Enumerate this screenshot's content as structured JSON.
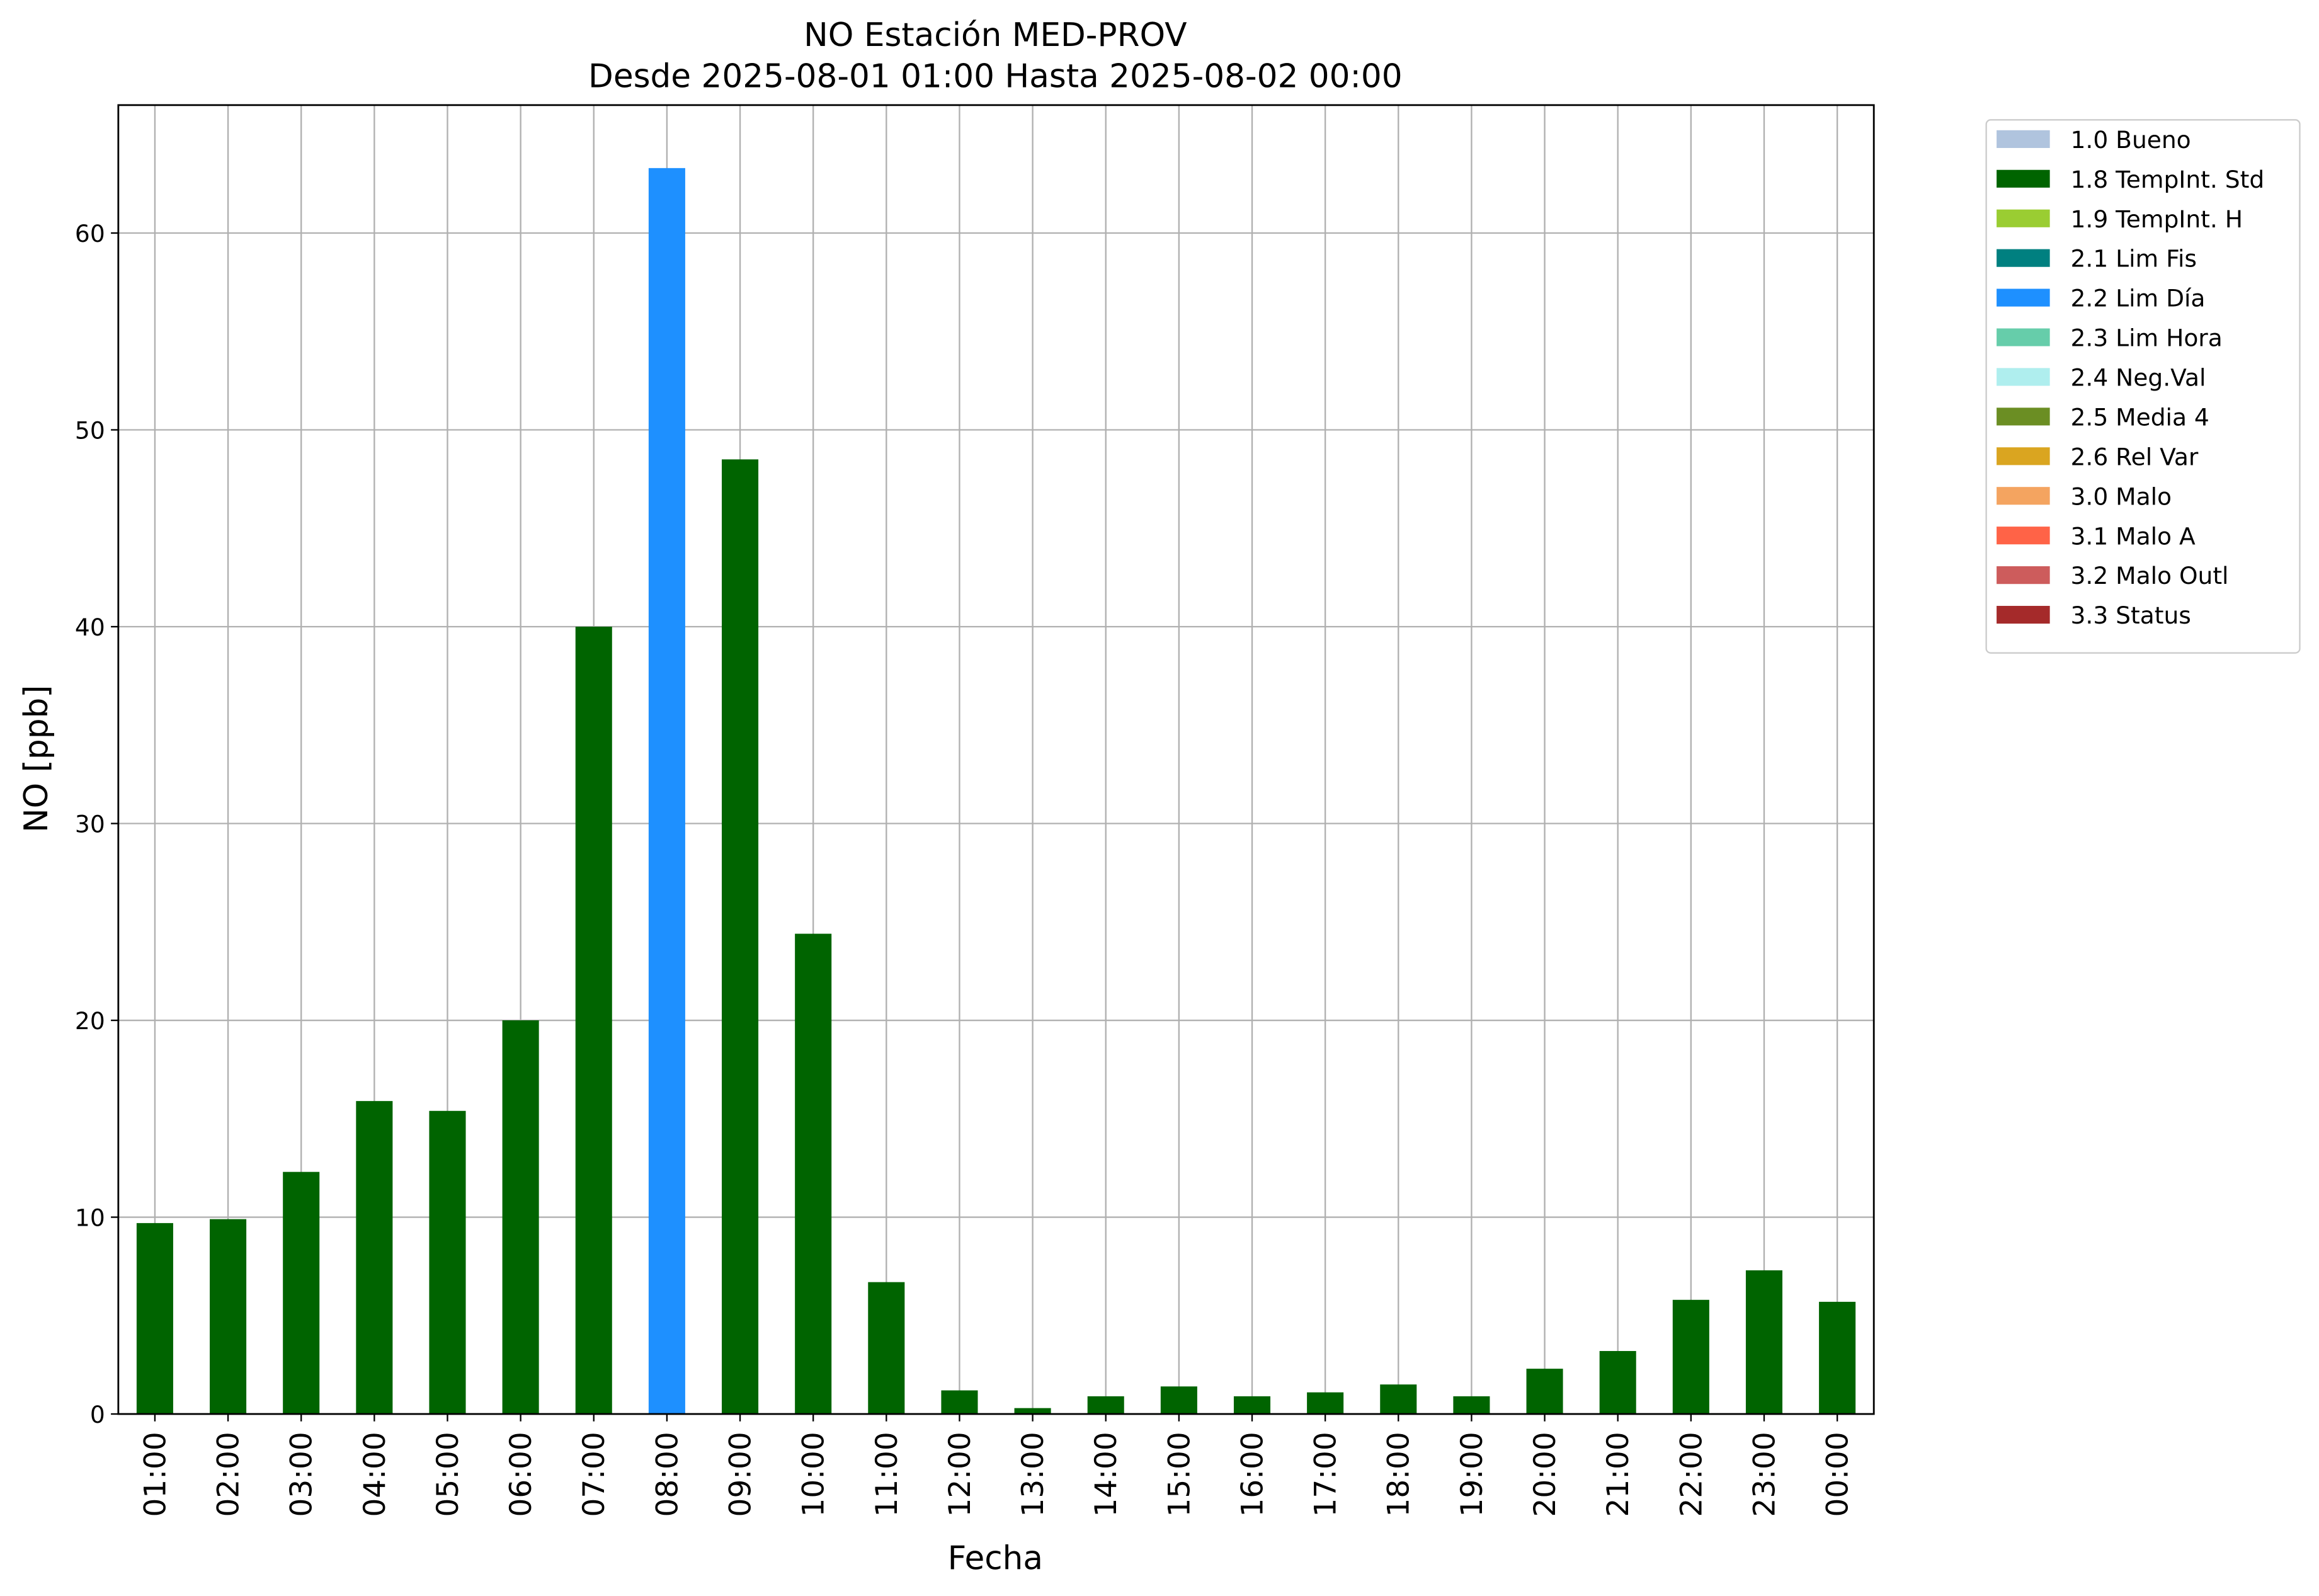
{
  "chart_data": {
    "type": "bar",
    "stacked": true,
    "title": "NO Estación MED-PROV",
    "subtitle": "Desde 2025-08-01 01:00 Hasta 2025-08-02 00:00",
    "x_label": "Fecha",
    "y_label": "NO [ppb]",
    "categories": [
      "01:00",
      "02:00",
      "03:00",
      "04:00",
      "05:00",
      "06:00",
      "07:00",
      "08:00",
      "09:00",
      "10:00",
      "11:00",
      "12:00",
      "13:00",
      "14:00",
      "15:00",
      "16:00",
      "17:00",
      "18:00",
      "19:00",
      "20:00",
      "21:00",
      "22:00",
      "23:00",
      "00:00"
    ],
    "ylim": [
      0,
      66.5
    ],
    "yticks": [
      0,
      10,
      20,
      30,
      40,
      50,
      60
    ],
    "grid": true,
    "legend": "outside right",
    "series": [
      {
        "name": "1.0 Bueno",
        "color": "#b0c4de",
        "values": [
          null,
          null,
          null,
          null,
          null,
          null,
          null,
          null,
          null,
          null,
          null,
          null,
          null,
          null,
          null,
          null,
          null,
          null,
          null,
          null,
          null,
          null,
          null,
          null
        ]
      },
      {
        "name": "1.8 TempInt. Std",
        "color": "#006400",
        "values": [
          9.7,
          9.9,
          12.3,
          15.9,
          15.4,
          20.0,
          40.0,
          null,
          48.5,
          24.4,
          6.7,
          1.2,
          0.3,
          0.9,
          1.4,
          0.9,
          1.1,
          1.5,
          0.9,
          2.3,
          3.2,
          5.8,
          7.3,
          5.7
        ]
      },
      {
        "name": "1.9 TempInt. H",
        "color": "#9acd32",
        "values": [
          null,
          null,
          null,
          null,
          null,
          null,
          null,
          null,
          null,
          null,
          null,
          null,
          null,
          null,
          null,
          null,
          null,
          null,
          null,
          null,
          null,
          null,
          null,
          null
        ]
      },
      {
        "name": "2.1 Lim Fis",
        "color": "#008080",
        "values": [
          null,
          null,
          null,
          null,
          null,
          null,
          null,
          null,
          null,
          null,
          null,
          null,
          null,
          null,
          null,
          null,
          null,
          null,
          null,
          null,
          null,
          null,
          null,
          null
        ]
      },
      {
        "name": "2.2 Lim Día",
        "color": "#1e90ff",
        "values": [
          null,
          null,
          null,
          null,
          null,
          null,
          null,
          63.3,
          null,
          null,
          null,
          null,
          null,
          null,
          null,
          null,
          null,
          null,
          null,
          null,
          null,
          null,
          null,
          null
        ]
      },
      {
        "name": "2.3 Lim Hora",
        "color": "#66cdaa",
        "values": [
          null,
          null,
          null,
          null,
          null,
          null,
          null,
          null,
          null,
          null,
          null,
          null,
          null,
          null,
          null,
          null,
          null,
          null,
          null,
          null,
          null,
          null,
          null,
          null
        ]
      },
      {
        "name": "2.4 Neg.Val",
        "color": "#afeeee",
        "values": [
          null,
          null,
          null,
          null,
          null,
          null,
          null,
          null,
          null,
          null,
          null,
          null,
          null,
          null,
          null,
          null,
          null,
          null,
          null,
          null,
          null,
          null,
          null,
          null
        ]
      },
      {
        "name": "2.5 Media 4",
        "color": "#6b8e23",
        "values": [
          null,
          null,
          null,
          null,
          null,
          null,
          null,
          null,
          null,
          null,
          null,
          null,
          null,
          null,
          null,
          null,
          null,
          null,
          null,
          null,
          null,
          null,
          null,
          null
        ]
      },
      {
        "name": "2.6 Rel Var",
        "color": "#daa520",
        "values": [
          null,
          null,
          null,
          null,
          null,
          null,
          null,
          null,
          null,
          null,
          null,
          null,
          null,
          null,
          null,
          null,
          null,
          null,
          null,
          null,
          null,
          null,
          null,
          null
        ]
      },
      {
        "name": "3.0 Malo",
        "color": "#f4a460",
        "values": [
          null,
          null,
          null,
          null,
          null,
          null,
          null,
          null,
          null,
          null,
          null,
          null,
          null,
          null,
          null,
          null,
          null,
          null,
          null,
          null,
          null,
          null,
          null,
          null
        ]
      },
      {
        "name": "3.1 Malo A",
        "color": "#ff6347",
        "values": [
          null,
          null,
          null,
          null,
          null,
          null,
          null,
          null,
          null,
          null,
          null,
          null,
          null,
          null,
          null,
          null,
          null,
          null,
          null,
          null,
          null,
          null,
          null,
          null
        ]
      },
      {
        "name": "3.2 Malo Outl",
        "color": "#cd5c5c",
        "values": [
          null,
          null,
          null,
          null,
          null,
          null,
          null,
          null,
          null,
          null,
          null,
          null,
          null,
          null,
          null,
          null,
          null,
          null,
          null,
          null,
          null,
          null,
          null,
          null
        ]
      },
      {
        "name": "3.3 Status",
        "color": "#a52a2a",
        "values": [
          null,
          null,
          null,
          null,
          null,
          null,
          null,
          null,
          null,
          null,
          null,
          null,
          null,
          null,
          null,
          null,
          null,
          null,
          null,
          null,
          null,
          null,
          null,
          null
        ]
      }
    ]
  }
}
